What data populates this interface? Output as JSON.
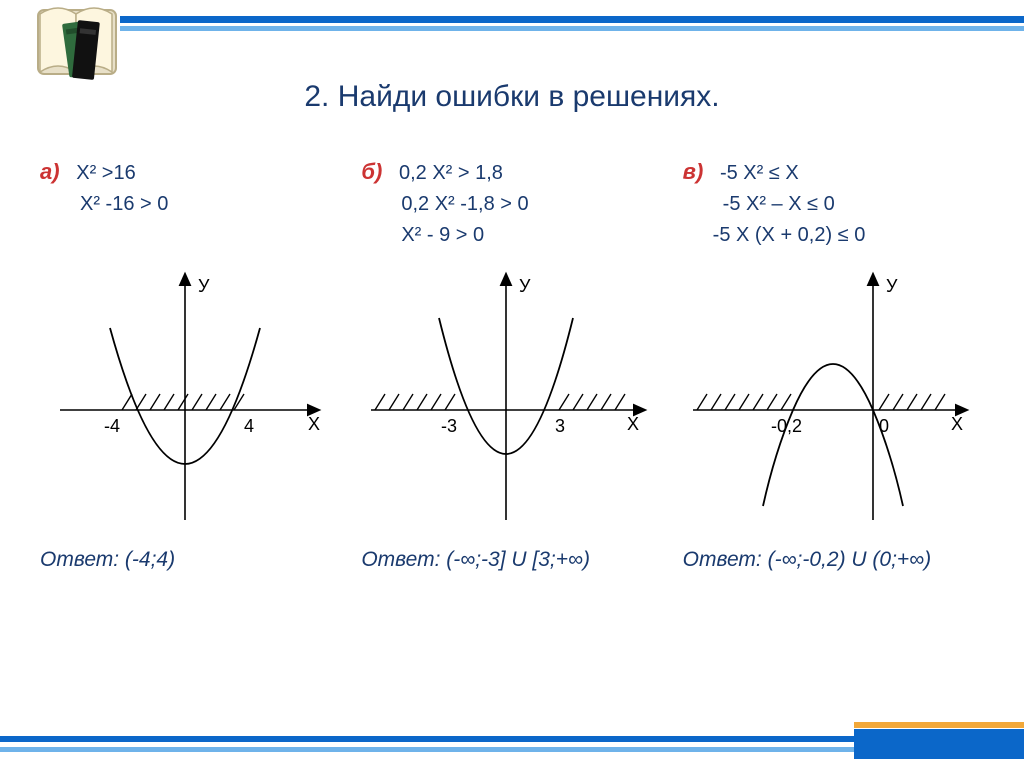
{
  "accent_color": "#0b67c9",
  "accent_light": "#6fb3ea",
  "accent_orange": "#f2a83a",
  "label_color": "#cc3333",
  "text_color": "#1a3a6e",
  "title": "2. Найди ошибки в решениях.",
  "problems": {
    "a": {
      "label": "а)",
      "lines": [
        "Х² >16",
        "Х² -16 > 0"
      ],
      "graph": {
        "type": "parabola",
        "direction": "up",
        "roots": [
          -4,
          4
        ],
        "root_labels": [
          "-4",
          "4"
        ],
        "shade": "between",
        "ylabel": "У",
        "xlabel": "Х"
      },
      "answer": "Ответ: (-4;4)"
    },
    "b": {
      "label": "б)",
      "lines": [
        "0,2 Х² > 1,8",
        "0,2 Х² -1,8 > 0",
        "Х² - 9 > 0"
      ],
      "graph": {
        "type": "parabola",
        "direction": "up",
        "roots": [
          -3,
          3
        ],
        "root_labels": [
          "-3",
          "3"
        ],
        "shade": "outside",
        "ylabel": "У",
        "xlabel": "Х"
      },
      "answer": "Ответ: (-∞;-3] U [3;+∞)"
    },
    "c": {
      "label": "в)",
      "lines": [
        "-5 Х² ≤ Х",
        "-5 Х² – Х ≤ 0",
        "-5 Х (Х + 0,2) ≤ 0"
      ],
      "graph": {
        "type": "parabola",
        "direction": "down",
        "roots": [
          -0.2,
          0
        ],
        "root_labels": [
          "-0,2",
          "0"
        ],
        "shade": "outside",
        "ylabel": "У",
        "xlabel": "Х"
      },
      "answer": "Ответ: (-∞;-0,2) U (0;+∞)"
    }
  }
}
